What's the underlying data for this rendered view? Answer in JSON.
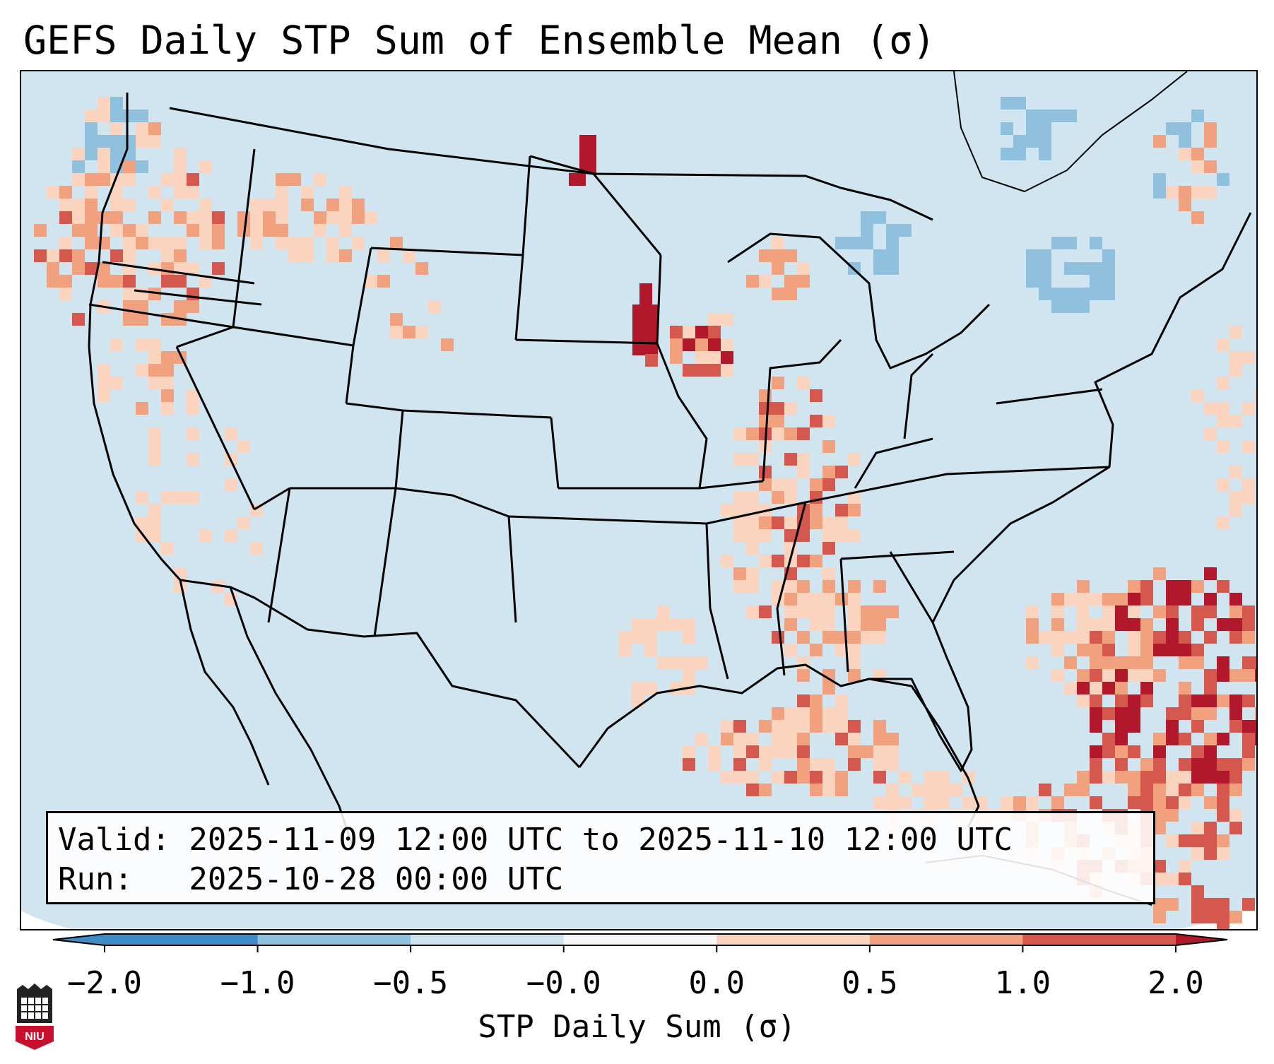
{
  "title": "GEFS Daily STP Sum of Ensemble Mean (σ)",
  "info": {
    "valid_line": "Valid: 2025-11-09 12:00 UTC to 2025-11-10 12:00 UTC",
    "run_line": "Run:   2025-10-28 00:00 UTC"
  },
  "colorbar": {
    "label": "STP Daily Sum (σ)",
    "ticks": [
      "−2.0",
      "−1.0",
      "−0.5",
      "−0.0",
      "0.0",
      "0.5",
      "1.0",
      "2.0"
    ],
    "colors": [
      "#3f8bc3",
      "#8fc0de",
      "#cfe3ef",
      "#f7f7f7",
      "#fbd4c0",
      "#f2a17f",
      "#d4584e",
      "#b2182b"
    ]
  },
  "map": {
    "background_color": "#d1e5f0",
    "land_outline_color": "#000000"
  },
  "logo": {
    "text": "NIU"
  }
}
